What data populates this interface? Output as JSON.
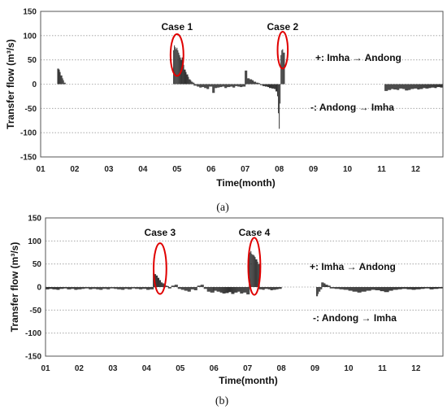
{
  "colors": {
    "bars": "#333333",
    "ellipse": "#e00000",
    "grid": "#9a9a9a"
  },
  "chart_data": [
    {
      "type": "bar",
      "panel_label": "(a)",
      "ylabel": "Transfer flow (m³/s)",
      "xlabel": "Time(month)",
      "ylim": [
        -150,
        150
      ],
      "yticks": [
        -150,
        -100,
        -50,
        0,
        50,
        100,
        150
      ],
      "xlim": [
        1,
        12.8
      ],
      "xticks": [
        "01",
        "02",
        "03",
        "04",
        "05",
        "06",
        "07",
        "08",
        "09",
        "10",
        "11",
        "12"
      ],
      "grid": true,
      "annotations": [
        "+: Imha → Andong",
        "-: Andong → Imha"
      ],
      "cases": [
        {
          "label": "Case 1",
          "center_month": 5.0,
          "center_value": 60,
          "rx_month": 0.19,
          "ry_value": 43
        },
        {
          "label": "Case 2",
          "center_month": 8.1,
          "center_value": 70,
          "rx_month": 0.15,
          "ry_value": 38
        }
      ],
      "series": [
        {
          "segments": [
            {
              "x0": 1.5,
              "x1": 1.72,
              "values": [
                32,
                30,
                25,
                18,
                12,
                8,
                3
              ]
            },
            {
              "x0": 4.9,
              "x1": 5.15,
              "values": [
                70,
                80,
                76,
                72,
                75,
                70,
                65,
                60,
                55,
                50
              ]
            },
            {
              "x0": 5.15,
              "x1": 5.5,
              "values": [
                55,
                40,
                30,
                25,
                20,
                15,
                10,
                8,
                5,
                3
              ]
            },
            {
              "x0": 5.5,
              "x1": 7.0,
              "values": [
                -3,
                -5,
                -7,
                -6,
                -8,
                -10,
                -5,
                -18,
                -8,
                -7,
                -6,
                -5,
                -8,
                -6,
                -5,
                -7,
                -4,
                -5,
                -6,
                -5
              ]
            },
            {
              "x0": 7.0,
              "x1": 7.9,
              "values": [
                28,
                12,
                10,
                8,
                5,
                3,
                2,
                -2,
                -4,
                -5,
                -6,
                -8,
                -9,
                -10
              ]
            },
            {
              "x0": 7.9,
              "x1": 8.15,
              "values": [
                -15,
                -25,
                -60,
                -92,
                -40,
                60,
                70,
                72,
                65
              ]
            },
            {
              "x0": 11.1,
              "x1": 12.8,
              "values": [
                -14,
                -12,
                -10,
                -11,
                -12,
                -9,
                -10,
                -13,
                -12,
                -10,
                -9,
                -11,
                -10,
                -8,
                -9,
                -8,
                -7,
                -8,
                -6,
                -7
              ]
            }
          ]
        }
      ]
    },
    {
      "type": "bar",
      "panel_label": "(b)",
      "ylabel": "Transfer flow (m³/s)",
      "xlabel": "Time(month)",
      "ylim": [
        -150,
        150
      ],
      "yticks": [
        -150,
        -100,
        -50,
        0,
        50,
        100,
        150
      ],
      "xlim": [
        1,
        12.8
      ],
      "xticks": [
        "01",
        "02",
        "03",
        "04",
        "05",
        "06",
        "07",
        "08",
        "09",
        "10",
        "11",
        "12"
      ],
      "grid": true,
      "annotations": [
        "+: Imha → Andong",
        "-: Andong → Imha"
      ],
      "cases": [
        {
          "label": "Case 3",
          "center_month": 4.4,
          "center_value": 40,
          "rx_month": 0.19,
          "ry_value": 55
        },
        {
          "label": "Case 4",
          "center_month": 7.2,
          "center_value": 45,
          "rx_month": 0.18,
          "ry_value": 62
        }
      ],
      "series": [
        {
          "segments": [
            {
              "x0": 1.0,
              "x1": 4.2,
              "values": [
                -5,
                -4,
                -5,
                -6,
                -4,
                -3,
                -5,
                -4,
                -6,
                -5,
                -4,
                -3,
                -5,
                -4,
                -5,
                -6,
                -4,
                -5,
                -3,
                -4,
                -5,
                -6,
                -4,
                -5,
                -3,
                -4,
                -5,
                -4,
                -6,
                -5
              ]
            },
            {
              "x0": 4.2,
              "x1": 4.65,
              "values": [
                30,
                28,
                25,
                20,
                15,
                10,
                8,
                5,
                3,
                2
              ]
            },
            {
              "x0": 4.65,
              "x1": 6.0,
              "values": [
                -3,
                3,
                5,
                -4,
                -6,
                -8,
                -10,
                -5,
                -7,
                3,
                5,
                -4,
                -10,
                -12
              ]
            },
            {
              "x0": 6.0,
              "x1": 7.05,
              "values": [
                -8,
                -10,
                -12,
                -14,
                -13,
                -11,
                -15,
                -12,
                -10,
                -14,
                -12,
                -16
              ]
            },
            {
              "x0": 7.05,
              "x1": 7.35,
              "values": [
                75,
                78,
                72,
                70,
                68,
                65,
                60,
                55,
                50
              ]
            },
            {
              "x0": 7.35,
              "x1": 8.0,
              "values": [
                -5,
                -6,
                -4,
                -5,
                -7,
                -6,
                -5,
                -4
              ]
            },
            {
              "x0": 9.05,
              "x1": 9.2,
              "values": [
                -20,
                -15,
                -10,
                -5
              ]
            },
            {
              "x0": 9.2,
              "x1": 9.45,
              "values": [
                10,
                8,
                5,
                3
              ]
            },
            {
              "x0": 9.45,
              "x1": 12.8,
              "values": [
                -3,
                -4,
                -5,
                -6,
                -8,
                -10,
                -12,
                -10,
                -8,
                -6,
                -7,
                -9,
                -11,
                -8,
                -6,
                -5,
                -4,
                -5,
                -6,
                -5,
                -4,
                -3,
                -5,
                -4,
                -3
              ]
            }
          ]
        }
      ]
    }
  ]
}
